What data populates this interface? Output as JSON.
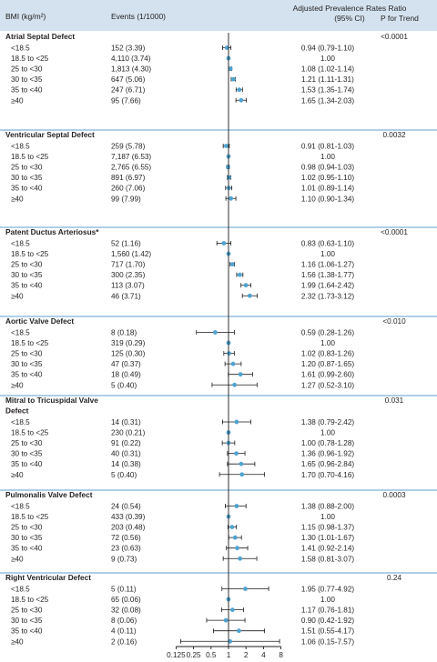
{
  "header": {
    "bmi_label": "BMI (kg/m²)",
    "events_label": "Events (1/1000)",
    "ratio_label_line1": "Adjusted Prevalence Rates Ratio",
    "ratio_label_line2": "(95% CI)",
    "trend_label": "P for Trend"
  },
  "colors": {
    "header_bg": "#d3e2ee",
    "point": "#4fa3cf",
    "divider": "#5e9fcc",
    "text": "#231f20"
  },
  "chart_data": {
    "type": "forest",
    "x_scale": "log2",
    "xlim": [
      0.125,
      8
    ],
    "x_ticks": [
      0.125,
      0.25,
      0.5,
      1,
      2,
      4,
      8
    ],
    "x_tick_labels": [
      "0.125",
      "0.25",
      "0.5",
      "1",
      "2",
      "4",
      "8"
    ],
    "reference_line": 1,
    "sections": [
      {
        "title": "Atrial Septal Defect",
        "p_trend": "<0.0001",
        "rows": [
          {
            "bmi": "<18.5",
            "events": "152 (3.39)",
            "ratio": 0.94,
            "lo": 0.79,
            "hi": 1.1,
            "ci_text": "0.94 (0.79-1.10)"
          },
          {
            "bmi": "18.5 to <25",
            "events": "4,110 (3.74)",
            "ratio": 1.0,
            "lo": null,
            "hi": null,
            "ci_text": "1.00"
          },
          {
            "bmi": "25 to <30",
            "events": "1,813 (4.30)",
            "ratio": 1.08,
            "lo": 1.02,
            "hi": 1.14,
            "ci_text": "1.08 (1.02-1.14)"
          },
          {
            "bmi": "30 to <35",
            "events": "647 (5.06)",
            "ratio": 1.21,
            "lo": 1.11,
            "hi": 1.31,
            "ci_text": "1.21 (1.11-1.31)"
          },
          {
            "bmi": "35 to <40",
            "events": "247 (6.71)",
            "ratio": 1.53,
            "lo": 1.35,
            "hi": 1.74,
            "ci_text": "1.53 (1.35-1.74)"
          },
          {
            "bmi": "≥40",
            "events": "95 (7.66)",
            "ratio": 1.65,
            "lo": 1.34,
            "hi": 2.03,
            "ci_text": "1.65 (1.34-2.03)"
          }
        ]
      },
      {
        "title": "Ventricular Septal Defect",
        "p_trend": "0.0032",
        "rows": [
          {
            "bmi": "<18.5",
            "events": "259 (5.78)",
            "ratio": 0.91,
            "lo": 0.81,
            "hi": 1.03,
            "ci_text": "0.91 (0.81-1.03)"
          },
          {
            "bmi": "18.5 to <25",
            "events": "7,187 (6.53)",
            "ratio": 1.0,
            "lo": null,
            "hi": null,
            "ci_text": "1.00"
          },
          {
            "bmi": "25 to <30",
            "events": "2,765 (6.55)",
            "ratio": 0.98,
            "lo": 0.94,
            "hi": 1.03,
            "ci_text": "0.98 (0.94-1.03)"
          },
          {
            "bmi": "30 to <35",
            "events": "891 (6.97)",
            "ratio": 1.02,
            "lo": 0.95,
            "hi": 1.1,
            "ci_text": "1.02 (0.95-1.10)"
          },
          {
            "bmi": "35 to <40",
            "events": "260 (7.06)",
            "ratio": 1.01,
            "lo": 0.89,
            "hi": 1.14,
            "ci_text": "1.01 (0.89-1.14)"
          },
          {
            "bmi": "≥40",
            "events": "99 (7.99)",
            "ratio": 1.1,
            "lo": 0.9,
            "hi": 1.34,
            "ci_text": "1.10 (0.90-1.34)"
          }
        ]
      },
      {
        "title": "Patent Ductus Arteriosus*",
        "p_trend": "<0.0001",
        "rows": [
          {
            "bmi": "<18.5",
            "events": "52 (1.16)",
            "ratio": 0.83,
            "lo": 0.63,
            "hi": 1.1,
            "ci_text": "0.83 (0.63-1.10)"
          },
          {
            "bmi": "18.5 to <25",
            "events": "1,560 (1.42)",
            "ratio": 1.0,
            "lo": null,
            "hi": null,
            "ci_text": "1.00"
          },
          {
            "bmi": "25 to <30",
            "events": "717 (1.70)",
            "ratio": 1.16,
            "lo": 1.06,
            "hi": 1.27,
            "ci_text": "1.16 (1.06-1.27)"
          },
          {
            "bmi": "30 to <35",
            "events": "300 (2.35)",
            "ratio": 1.56,
            "lo": 1.38,
            "hi": 1.77,
            "ci_text": "1.56 (1.38-1.77)"
          },
          {
            "bmi": "35 to <40",
            "events": "113 (3.07)",
            "ratio": 1.99,
            "lo": 1.64,
            "hi": 2.42,
            "ci_text": "1.99 (1.64-2.42)"
          },
          {
            "bmi": "≥40",
            "events": "46 (3.71)",
            "ratio": 2.32,
            "lo": 1.73,
            "hi": 3.12,
            "ci_text": "2.32 (1.73-3.12)"
          }
        ]
      },
      {
        "title": "Aortic Valve Defect",
        "p_trend": "<0.010",
        "rows": [
          {
            "bmi": "<18.5",
            "events": "8 (0.18)",
            "ratio": 0.59,
            "lo": 0.28,
            "hi": 1.26,
            "ci_text": "0.59 (0.28-1.26)"
          },
          {
            "bmi": "18.5 to <25",
            "events": "319 (0.29)",
            "ratio": 1.0,
            "lo": null,
            "hi": null,
            "ci_text": "1.00"
          },
          {
            "bmi": "25 to <30",
            "events": "125 (0.30)",
            "ratio": 1.02,
            "lo": 0.83,
            "hi": 1.26,
            "ci_text": "1.02 (0.83-1.26)"
          },
          {
            "bmi": "30 to <35",
            "events": "47 (0.37)",
            "ratio": 1.2,
            "lo": 0.87,
            "hi": 1.65,
            "ci_text": "1.20 (0.87-1.65)"
          },
          {
            "bmi": "35 to <40",
            "events": "18 (0.49)",
            "ratio": 1.61,
            "lo": 0.99,
            "hi": 2.6,
            "ci_text": "1.61 (0.99-2.60)"
          },
          {
            "bmi": "≥40",
            "events": "5 (0.40)",
            "ratio": 1.27,
            "lo": 0.52,
            "hi": 3.1,
            "ci_text": "1.27 (0.52-3.10)"
          }
        ]
      },
      {
        "title": "Mitral to Tricuspidal Valve Defect",
        "title_lines": [
          "Mitral to Tricuspidal Valve",
          "Defect"
        ],
        "p_trend": "0.031",
        "rows": [
          {
            "bmi": "<18.5",
            "events": "14 (0.31)",
            "ratio": 1.38,
            "lo": 0.79,
            "hi": 2.42,
            "ci_text": "1.38 (0.79-2.42)"
          },
          {
            "bmi": "18.5 to <25",
            "events": "230 (0.21)",
            "ratio": 1.0,
            "lo": null,
            "hi": null,
            "ci_text": "1.00"
          },
          {
            "bmi": "25 to <30",
            "events": "91 (0.22)",
            "ratio": 1.0,
            "lo": 0.78,
            "hi": 1.28,
            "ci_text": "1.00 (0.78-1.28)"
          },
          {
            "bmi": "30 to <35",
            "events": "40 (0.31)",
            "ratio": 1.36,
            "lo": 0.96,
            "hi": 1.92,
            "ci_text": "1.36 (0.96-1.92)"
          },
          {
            "bmi": "35 to <40",
            "events": "14 (0.38)",
            "ratio": 1.65,
            "lo": 0.96,
            "hi": 2.84,
            "ci_text": "1.65 (0.96-2.84)"
          },
          {
            "bmi": "≥40",
            "events": "5 (0.40)",
            "ratio": 1.7,
            "lo": 0.7,
            "hi": 4.16,
            "ci_text": "1.70 (0.70-4.16)"
          }
        ]
      },
      {
        "title": "Pulmonalis Valve Defect",
        "p_trend": "0.0003",
        "rows": [
          {
            "bmi": "<18.5",
            "events": "24 (0.54)",
            "ratio": 1.38,
            "lo": 0.88,
            "hi": 2.0,
            "ci_text": "1.38 (0.88-2.00)"
          },
          {
            "bmi": "18.5 to <25",
            "events": "433 (0.39)",
            "ratio": 1.0,
            "lo": null,
            "hi": null,
            "ci_text": "1.00"
          },
          {
            "bmi": "25 to <30",
            "events": "203 (0.48)",
            "ratio": 1.15,
            "lo": 0.98,
            "hi": 1.37,
            "ci_text": "1.15 (0.98-1.37)"
          },
          {
            "bmi": "30 to <35",
            "events": "72 (0.56)",
            "ratio": 1.3,
            "lo": 1.01,
            "hi": 1.67,
            "ci_text": "1.30 (1.01-1.67)"
          },
          {
            "bmi": "35 to <40",
            "events": "23 (0.63)",
            "ratio": 1.41,
            "lo": 0.92,
            "hi": 2.14,
            "ci_text": "1.41 (0.92-2.14)"
          },
          {
            "bmi": "≥40",
            "events": "9 (0.73)",
            "ratio": 1.58,
            "lo": 0.81,
            "hi": 3.07,
            "ci_text": "1.58 (0.81-3.07)"
          }
        ]
      },
      {
        "title": "Right Ventricular Defect",
        "p_trend": "0.24",
        "rows": [
          {
            "bmi": "<18.5",
            "events": "5 (0.11)",
            "ratio": 1.95,
            "lo": 0.77,
            "hi": 4.92,
            "ci_text": "1.95 (0.77-4.92)"
          },
          {
            "bmi": "18.5 to <25",
            "events": "65 (0.06)",
            "ratio": 1.0,
            "lo": null,
            "hi": null,
            "ci_text": "1.00"
          },
          {
            "bmi": "25 to <30",
            "events": "32 (0.08)",
            "ratio": 1.17,
            "lo": 0.76,
            "hi": 1.81,
            "ci_text": "1.17 (0.76-1.81)"
          },
          {
            "bmi": "30 to <35",
            "events": "8 (0.06)",
            "ratio": 0.9,
            "lo": 0.42,
            "hi": 1.92,
            "ci_text": "0.90 (0.42-1.92)"
          },
          {
            "bmi": "35 to <40",
            "events": "4 (0.11)",
            "ratio": 1.51,
            "lo": 0.55,
            "hi": 4.17,
            "ci_text": "1.51 (0.55-4.17)"
          },
          {
            "bmi": "≥40",
            "events": "2 (0.16)",
            "ratio": 1.06,
            "lo": 0.15,
            "hi": 7.57,
            "ci_text": "1.06 (0.15-7.57)"
          }
        ]
      }
    ]
  }
}
